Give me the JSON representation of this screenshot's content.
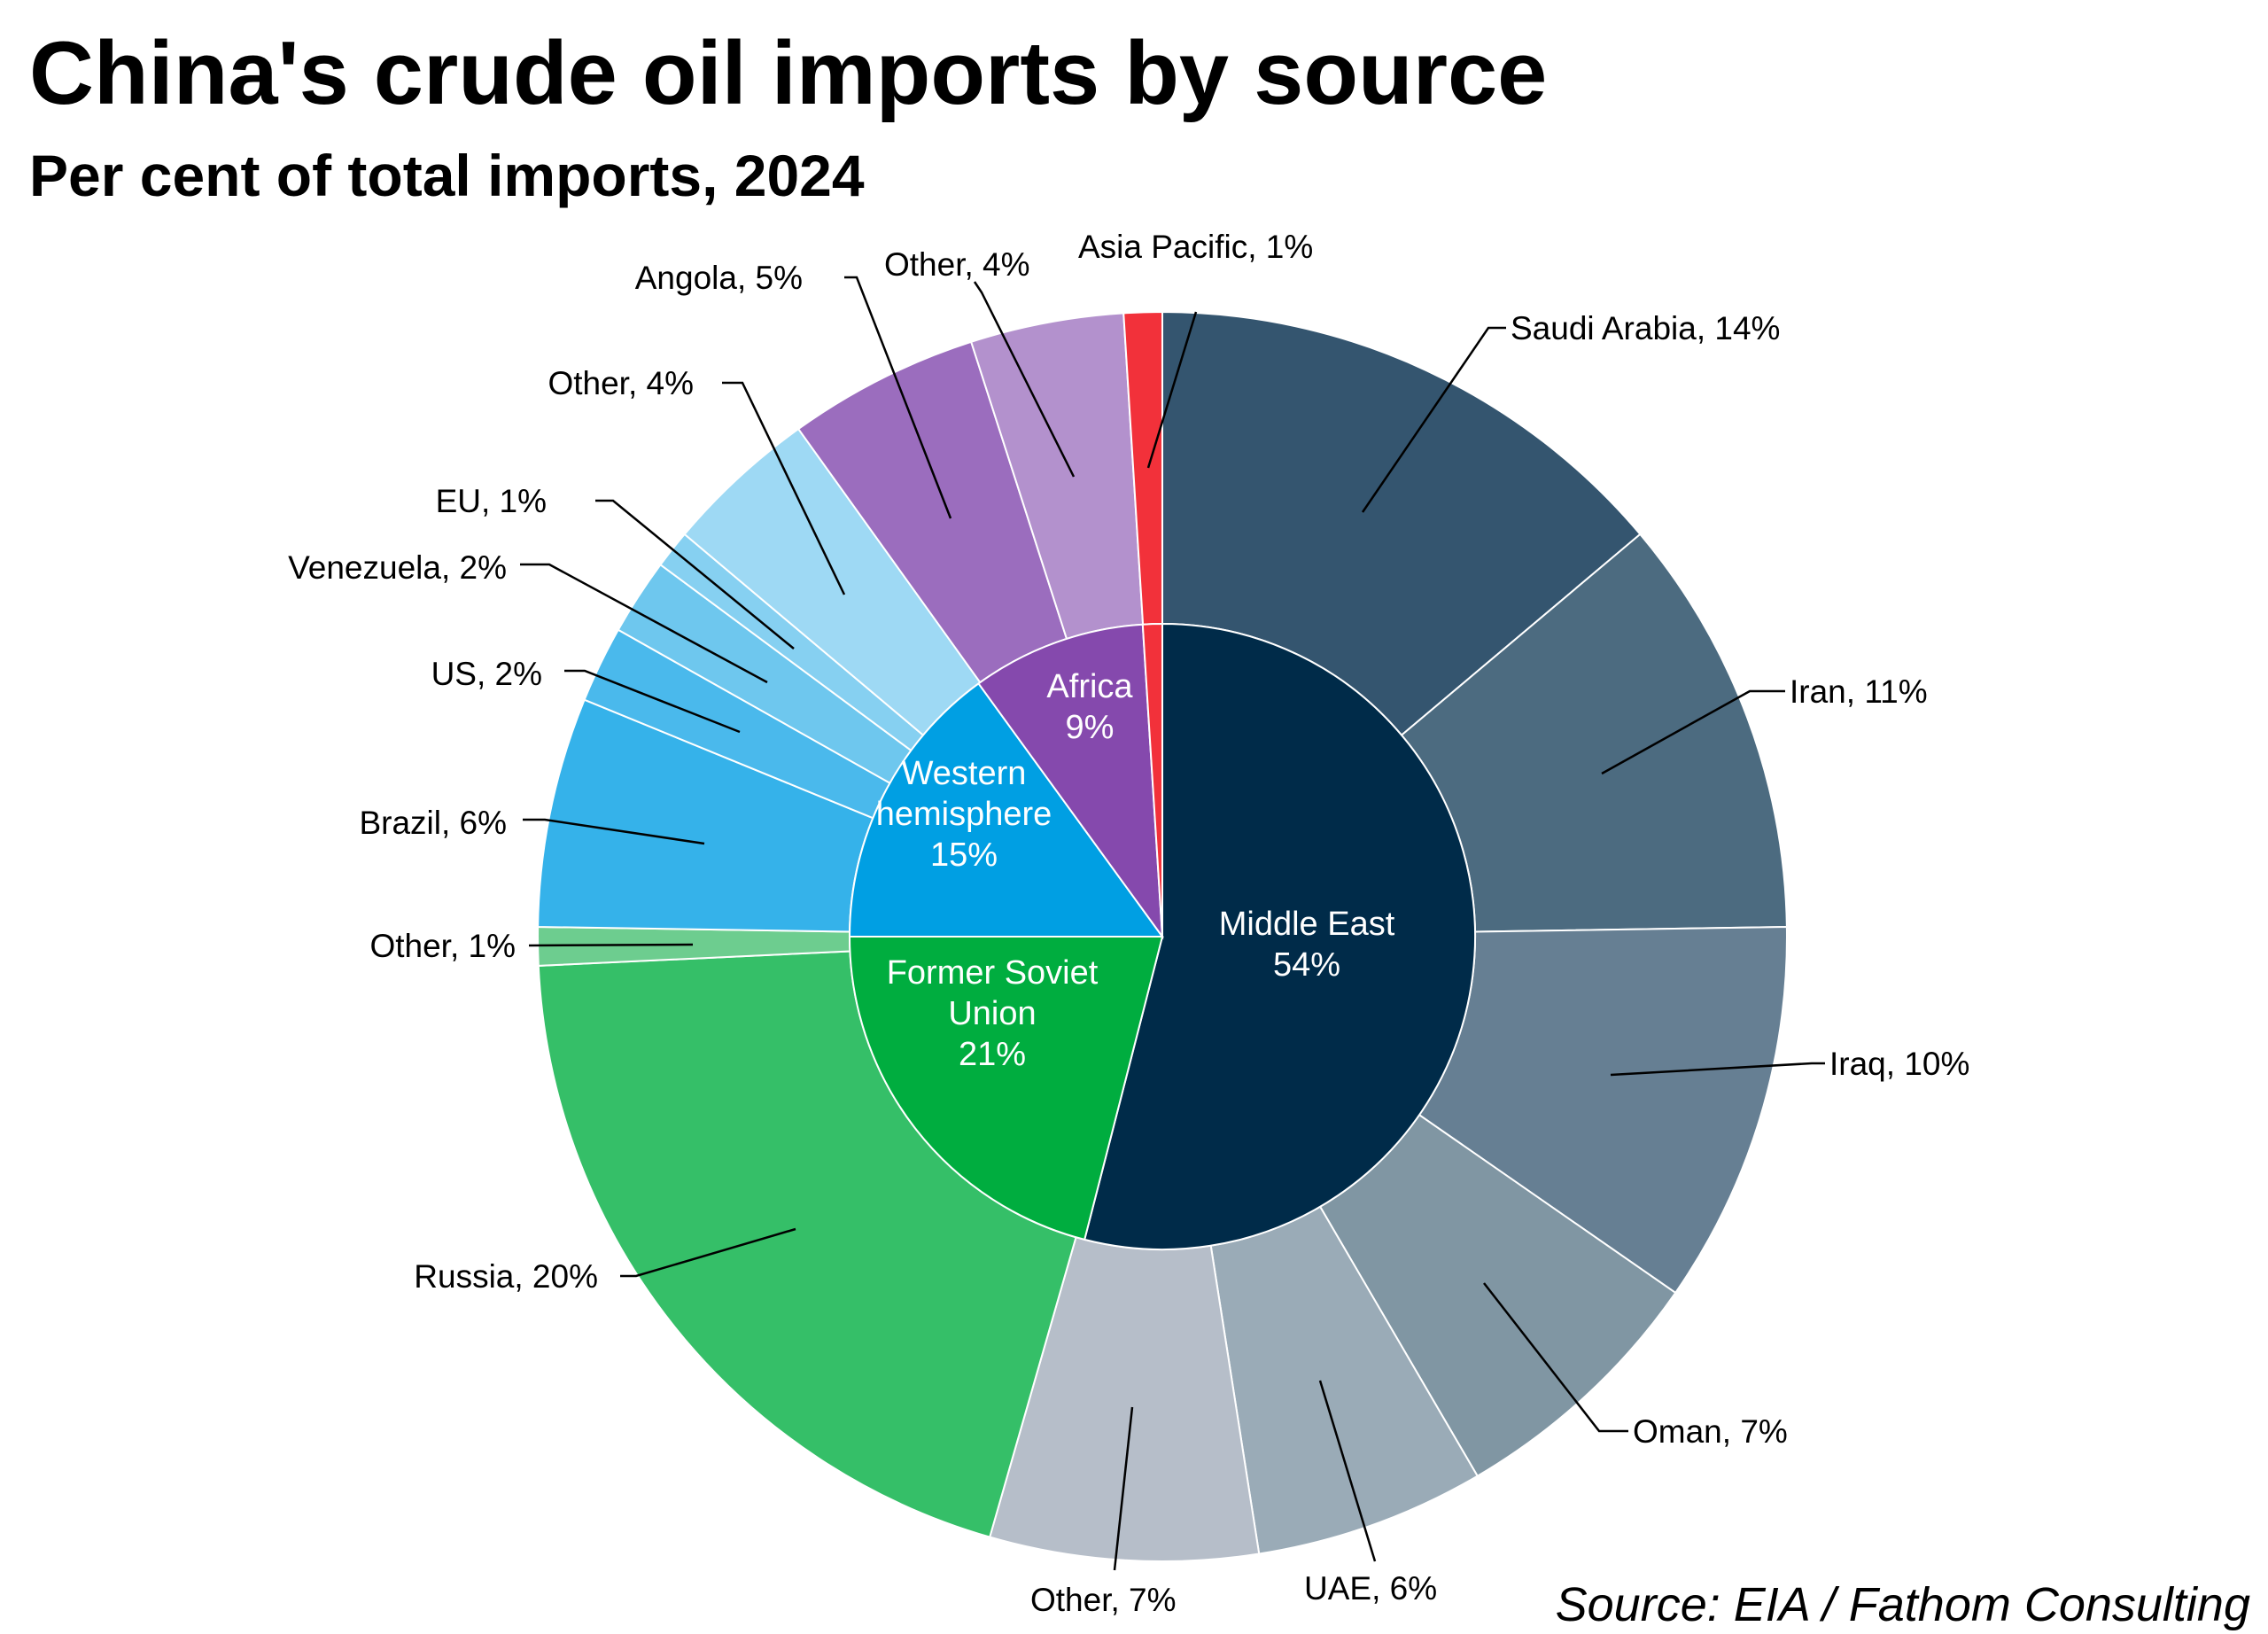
{
  "title": "China's crude oil imports by source",
  "subtitle": "Per cent of total imports, 2024",
  "source": "Source: EIA / Fathom Consulting",
  "chart_data": {
    "type": "pie",
    "subtype": "sunburst",
    "unit": "%",
    "inner": [
      {
        "label": "Middle East",
        "value": 54,
        "color": "#002b49"
      },
      {
        "label": "Former Soviet Union",
        "value": 21,
        "color": "#00ad3f"
      },
      {
        "label": "Western hemisphere",
        "value": 15,
        "color": "#009fe3"
      },
      {
        "label": "Africa",
        "value": 9,
        "color": "#8549ad"
      },
      {
        "label": "Asia Pacific",
        "value": 1,
        "color": "#f2313a"
      }
    ],
    "outer": [
      {
        "label": "Saudi Arabia",
        "value": 14,
        "parent": "Middle East",
        "color": "#34556f"
      },
      {
        "label": "Iran",
        "value": 11,
        "parent": "Middle East",
        "color": "#4c6b80"
      },
      {
        "label": "Iraq",
        "value": 10,
        "parent": "Middle East",
        "color": "#667f93"
      },
      {
        "label": "Oman",
        "value": 7,
        "parent": "Middle East",
        "color": "#8096a3"
      },
      {
        "label": "UAE",
        "value": 6,
        "parent": "Middle East",
        "color": "#9aabb7"
      },
      {
        "label": "Other",
        "value": 7,
        "parent": "Middle East",
        "color": "#b6bec9"
      },
      {
        "label": "Russia",
        "value": 20,
        "parent": "Former Soviet Union",
        "color": "#35bf68"
      },
      {
        "label": "Other",
        "value": 1,
        "parent": "Former Soviet Union",
        "color": "#6dcd8f"
      },
      {
        "label": "Brazil",
        "value": 6,
        "parent": "Western hemisphere",
        "color": "#35b2ea"
      },
      {
        "label": "US",
        "value": 2,
        "parent": "Western hemisphere",
        "color": "#4ab9ec"
      },
      {
        "label": "Venezuela",
        "value": 2,
        "parent": "Western hemisphere",
        "color": "#6ec7ee"
      },
      {
        "label": "EU",
        "value": 1,
        "parent": "Western hemisphere",
        "color": "#86d0f1"
      },
      {
        "label": "Other",
        "value": 4,
        "parent": "Western hemisphere",
        "color": "#9ed9f4"
      },
      {
        "label": "Angola",
        "value": 5,
        "parent": "Africa",
        "color": "#9b6dbe"
      },
      {
        "label": "Other",
        "value": 4,
        "parent": "Africa",
        "color": "#b391cd"
      },
      {
        "label": "Asia Pacific",
        "value": 1,
        "parent": "Asia Pacific",
        "color": "#f2313a"
      }
    ]
  }
}
